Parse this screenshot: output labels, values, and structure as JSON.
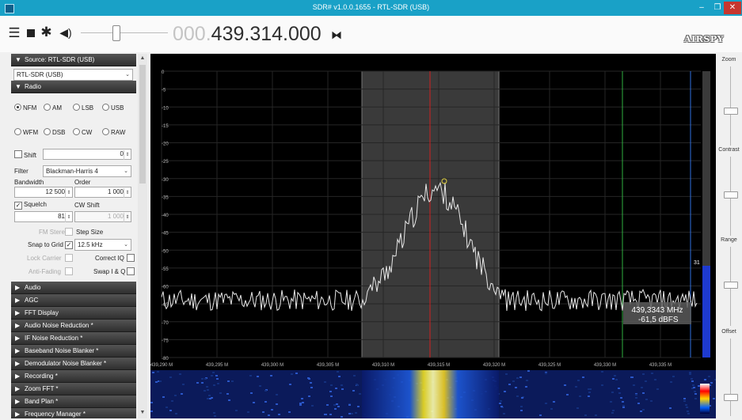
{
  "window": {
    "title": "SDR# v1.0.0.1655 - RTL-SDR (USB)"
  },
  "toolbar": {
    "freq_dim": "000.",
    "freq_strong": "439.314.000",
    "logo": "AIRSPY"
  },
  "sidebar": {
    "source_header": "Source: RTL-SDR (USB)",
    "source_value": "RTL-SDR (USB)",
    "radio_header": "Radio",
    "modes_row1": [
      "NFM",
      "AM",
      "LSB",
      "USB"
    ],
    "modes_row2": [
      "WFM",
      "DSB",
      "CW",
      "RAW"
    ],
    "shift_label": "Shift",
    "shift_value": "0",
    "filter_label": "Filter",
    "filter_value": "Blackman-Harris 4",
    "bandwidth_label": "Bandwidth",
    "order_label": "Order",
    "bandwidth_value": "12 500",
    "order_value": "1 000",
    "squelch_label": "Squelch",
    "cw_shift_label": "CW Shift",
    "squelch_value": "81",
    "cw_shift_value": "1 000",
    "fm_stereo_label": "FM Stereo",
    "step_size_label": "Step Size",
    "snap_label": "Snap to Grid",
    "step_size_value": "12.5 kHz",
    "lock_carrier_label": "Lock Carrier",
    "correct_iq_label": "Correct IQ",
    "anti_fading_label": "Anti-Fading",
    "swap_iq_label": "Swap I & Q",
    "sections": [
      "Audio",
      "AGC",
      "FFT Display",
      "Audio Noise Reduction *",
      "IF Noise Reduction *",
      "Baseband Noise Blanker *",
      "Demodulator Noise Blanker *",
      "Recording *",
      "Zoom FFT *",
      "Band Plan *",
      "Frequency Manager *"
    ]
  },
  "right_panel": {
    "zoom": "Zoom",
    "contrast": "Contrast",
    "range": "Range",
    "offset": "Offset"
  },
  "spectrum": {
    "y_ticks": [
      "0",
      "-5",
      "-10",
      "-15",
      "-20",
      "-25",
      "-30",
      "-35",
      "-40",
      "-45",
      "-50",
      "-55",
      "-60",
      "-65",
      "-70",
      "-75",
      "-80"
    ],
    "x_ticks": [
      "439,290 M",
      "439,295 M",
      "439,300 M",
      "439,305 M",
      "439,310 M",
      "439,315 M",
      "439,320 M",
      "439,325 M",
      "439,330 M",
      "439,335 M"
    ],
    "cursor_freq": "439,3343 MHz",
    "cursor_level": "-61,5 dBFS",
    "level_meter_label": "31"
  }
}
